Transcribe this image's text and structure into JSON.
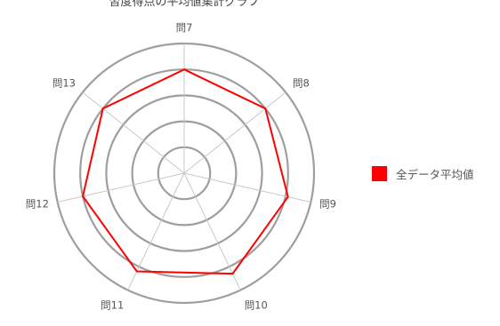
{
  "chart_data": {
    "type": "radar",
    "title": "習度得点の平均値集計グラフ",
    "categories": [
      "問7",
      "問8",
      "問9",
      "問10",
      "問11",
      "問12",
      "問13"
    ],
    "series": [
      {
        "name": "全データ平均値",
        "color": "#ff0000",
        "values": [
          4.0,
          4.0,
          4.1,
          4.3,
          4.2,
          4.0,
          4.0
        ]
      }
    ],
    "rlim": [
      0,
      5
    ],
    "rings": [
      1,
      2,
      3,
      4,
      5
    ],
    "grid": true,
    "legend_position": "right"
  }
}
